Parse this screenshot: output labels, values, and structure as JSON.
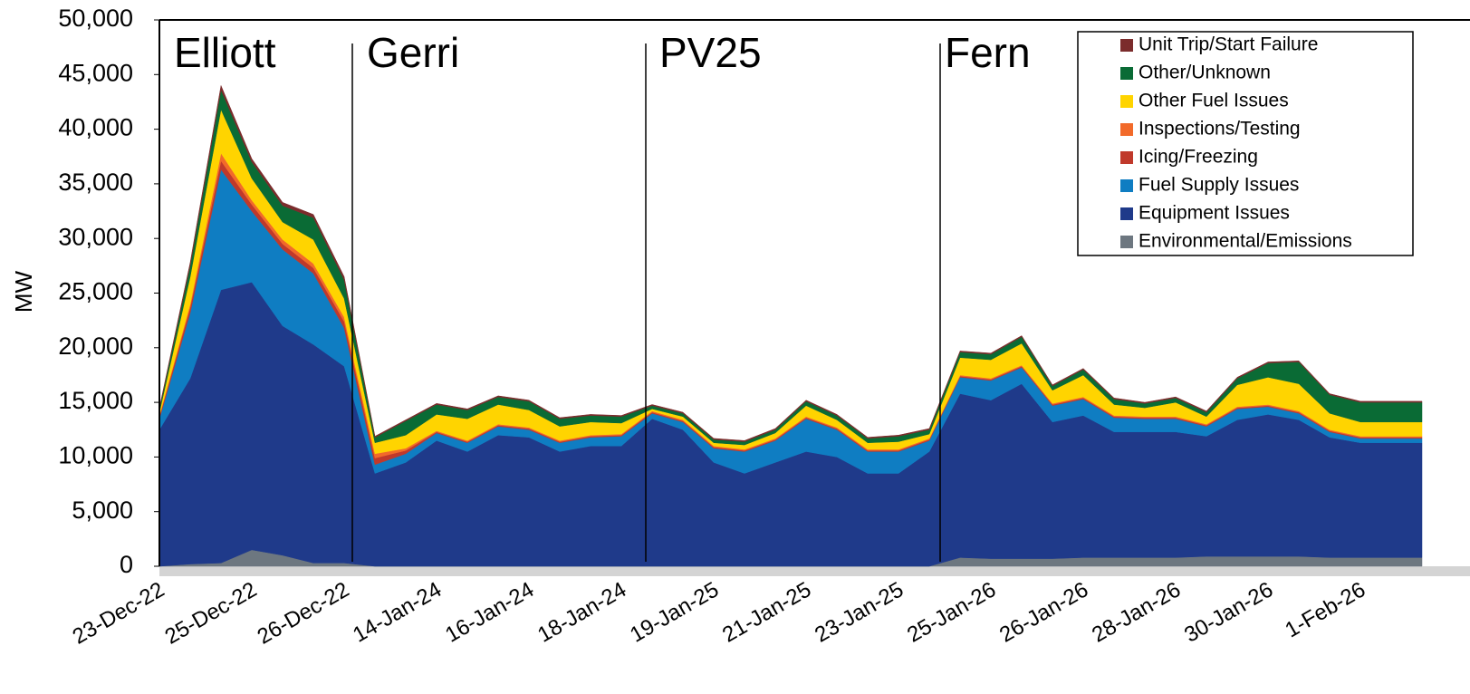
{
  "chart_data": {
    "type": "stacked-area",
    "y_label": "MW",
    "annotations": [
      "Elliott",
      "Gerri",
      "PV25",
      "Fern"
    ],
    "categories": [
      "23-Dec-22",
      null,
      null,
      "25-Dec-22",
      null,
      null,
      "26-Dec-22",
      null,
      null,
      "14-Jan-24",
      null,
      null,
      "16-Jan-24",
      null,
      null,
      "18-Jan-24",
      null,
      null,
      "19-Jan-25",
      null,
      null,
      "21-Jan-25",
      null,
      null,
      "23-Jan-25",
      null,
      null,
      "25-Jan-26",
      null,
      null,
      "26-Jan-26",
      null,
      null,
      "28-Jan-26",
      null,
      null,
      "30-Jan-26",
      null,
      null,
      "1-Feb-26",
      null,
      null
    ],
    "series": [
      {
        "name": "Environmental/Emissions",
        "color": "#6d7780",
        "values": [
          0,
          200,
          300,
          1500,
          1000,
          300,
          300,
          0,
          0,
          0,
          0,
          0,
          0,
          0,
          0,
          0,
          0,
          0,
          0,
          0,
          0,
          0,
          0,
          0,
          0,
          0,
          800,
          700,
          700,
          700,
          800,
          800,
          800,
          800,
          900,
          900,
          900,
          900,
          800,
          800,
          800,
          800
        ]
      },
      {
        "name": "Equipment Issues",
        "color": "#1f3a8a",
        "values": [
          12500,
          17000,
          25000,
          24500,
          21000,
          20000,
          18000,
          8500,
          9500,
          11500,
          10500,
          12000,
          11800,
          10500,
          11000,
          11000,
          13500,
          12500,
          9500,
          8500,
          9500,
          10500,
          10000,
          8500,
          8500,
          10500,
          15000,
          14500,
          16000,
          12500,
          13000,
          11500,
          11500,
          11500,
          11000,
          12500,
          13000,
          12500,
          11000,
          10500,
          10500,
          10500
        ]
      },
      {
        "name": "Fuel Supply Issues",
        "color": "#0f7dc2",
        "values": [
          1000,
          6000,
          11000,
          6500,
          7000,
          6500,
          3500,
          800,
          800,
          700,
          800,
          800,
          700,
          800,
          800,
          900,
          500,
          700,
          1300,
          2000,
          2000,
          3000,
          2500,
          2000,
          2000,
          1000,
          1500,
          1800,
          1500,
          1500,
          1500,
          1300,
          1200,
          1200,
          900,
          1000,
          700,
          600,
          500,
          400,
          400,
          400
        ]
      },
      {
        "name": "Icing/Freezing",
        "color": "#c0392b",
        "values": [
          200,
          500,
          800,
          600,
          500,
          500,
          600,
          600,
          300,
          100,
          100,
          100,
          100,
          100,
          100,
          100,
          100,
          100,
          100,
          100,
          100,
          100,
          100,
          100,
          100,
          100,
          100,
          100,
          100,
          100,
          100,
          100,
          100,
          100,
          100,
          100,
          100,
          100,
          100,
          100,
          100,
          100
        ]
      },
      {
        "name": "Inspections/Testing",
        "color": "#f26a2a",
        "values": [
          100,
          300,
          700,
          400,
          400,
          400,
          400,
          400,
          200,
          100,
          100,
          100,
          100,
          100,
          100,
          100,
          100,
          100,
          100,
          100,
          100,
          100,
          100,
          100,
          100,
          100,
          100,
          100,
          100,
          100,
          100,
          100,
          100,
          100,
          100,
          100,
          100,
          100,
          100,
          100,
          100,
          100
        ]
      },
      {
        "name": "Other Fuel Issues",
        "color": "#ffd400",
        "values": [
          300,
          2500,
          4000,
          2000,
          1600,
          2200,
          1700,
          1000,
          1200,
          1500,
          2000,
          1800,
          1600,
          1300,
          1200,
          1000,
          200,
          300,
          300,
          400,
          500,
          1000,
          700,
          600,
          700,
          400,
          1600,
          1700,
          2000,
          1200,
          2000,
          1000,
          800,
          1300,
          700,
          2000,
          2500,
          2500,
          1500,
          1300,
          1300,
          1300
        ]
      },
      {
        "name": "Other/Unknown",
        "color": "#0a6b35",
        "values": [
          300,
          1000,
          1800,
          1500,
          1500,
          2000,
          1700,
          500,
          1300,
          900,
          800,
          700,
          800,
          700,
          600,
          600,
          300,
          300,
          300,
          300,
          300,
          400,
          400,
          400,
          500,
          400,
          500,
          500,
          600,
          400,
          500,
          500,
          400,
          400,
          400,
          600,
          1300,
          2000,
          1700,
          1800,
          1800,
          1800
        ]
      },
      {
        "name": "Unit Trip/Start Failure",
        "color": "#7b2c2c",
        "values": [
          100,
          300,
          400,
          300,
          300,
          300,
          300,
          100,
          100,
          100,
          100,
          100,
          100,
          100,
          100,
          100,
          100,
          100,
          100,
          100,
          100,
          100,
          100,
          100,
          100,
          100,
          100,
          100,
          100,
          100,
          100,
          100,
          100,
          100,
          100,
          100,
          100,
          100,
          100,
          100,
          100,
          100
        ]
      }
    ],
    "ylim": [
      0,
      50000
    ],
    "yticks": [
      0,
      {
        "value": 5000,
        "label": "5,000"
      },
      {
        "value": 10000,
        "label": "10,000"
      },
      {
        "value": 15000,
        "label": "15,000"
      },
      {
        "value": 20000,
        "label": "20,000"
      },
      {
        "value": 25000,
        "label": "25,000"
      },
      {
        "value": 30000,
        "label": "30,000"
      },
      {
        "value": 35000,
        "label": "35,000"
      },
      {
        "value": 40000,
        "label": "40,000"
      },
      {
        "value": 45000,
        "label": "45,000"
      },
      {
        "value": 50000,
        "label": "50,000"
      }
    ],
    "legend": "top-right"
  }
}
